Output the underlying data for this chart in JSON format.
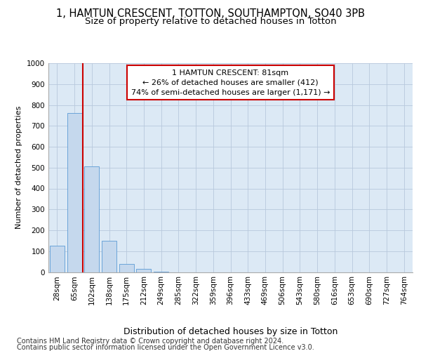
{
  "title1": "1, HAMTUN CRESCENT, TOTTON, SOUTHAMPTON, SO40 3PB",
  "title2": "Size of property relative to detached houses in Totton",
  "xlabel": "Distribution of detached houses by size in Totton",
  "ylabel": "Number of detached properties",
  "bin_labels": [
    "28sqm",
    "65sqm",
    "102sqm",
    "138sqm",
    "175sqm",
    "212sqm",
    "249sqm",
    "285sqm",
    "322sqm",
    "359sqm",
    "396sqm",
    "433sqm",
    "469sqm",
    "506sqm",
    "543sqm",
    "580sqm",
    "616sqm",
    "653sqm",
    "690sqm",
    "727sqm",
    "764sqm"
  ],
  "bar_values": [
    125,
    760,
    505,
    150,
    40,
    15,
    3,
    0,
    0,
    0,
    0,
    0,
    0,
    0,
    0,
    0,
    0,
    0,
    0,
    0,
    0
  ],
  "bar_color": "#c5d8ed",
  "bar_edge_color": "#5b9bd5",
  "grid_color": "#b8c8dc",
  "bg_color": "#dce9f5",
  "vline_color": "#cc0000",
  "vline_x": 1.5,
  "annotation_text": "1 HAMTUN CRESCENT: 81sqm\n← 26% of detached houses are smaller (412)\n74% of semi-detached houses are larger (1,171) →",
  "annotation_box_facecolor": "#ffffff",
  "annotation_box_edgecolor": "#cc0000",
  "ylim": [
    0,
    1000
  ],
  "yticks": [
    0,
    100,
    200,
    300,
    400,
    500,
    600,
    700,
    800,
    900,
    1000
  ],
  "footer_line1": "Contains HM Land Registry data © Crown copyright and database right 2024.",
  "footer_line2": "Contains public sector information licensed under the Open Government Licence v3.0.",
  "title1_fontsize": 10.5,
  "title2_fontsize": 9.5,
  "xlabel_fontsize": 9,
  "ylabel_fontsize": 8,
  "tick_fontsize": 7.5,
  "annotation_fontsize": 8,
  "footer_fontsize": 7
}
